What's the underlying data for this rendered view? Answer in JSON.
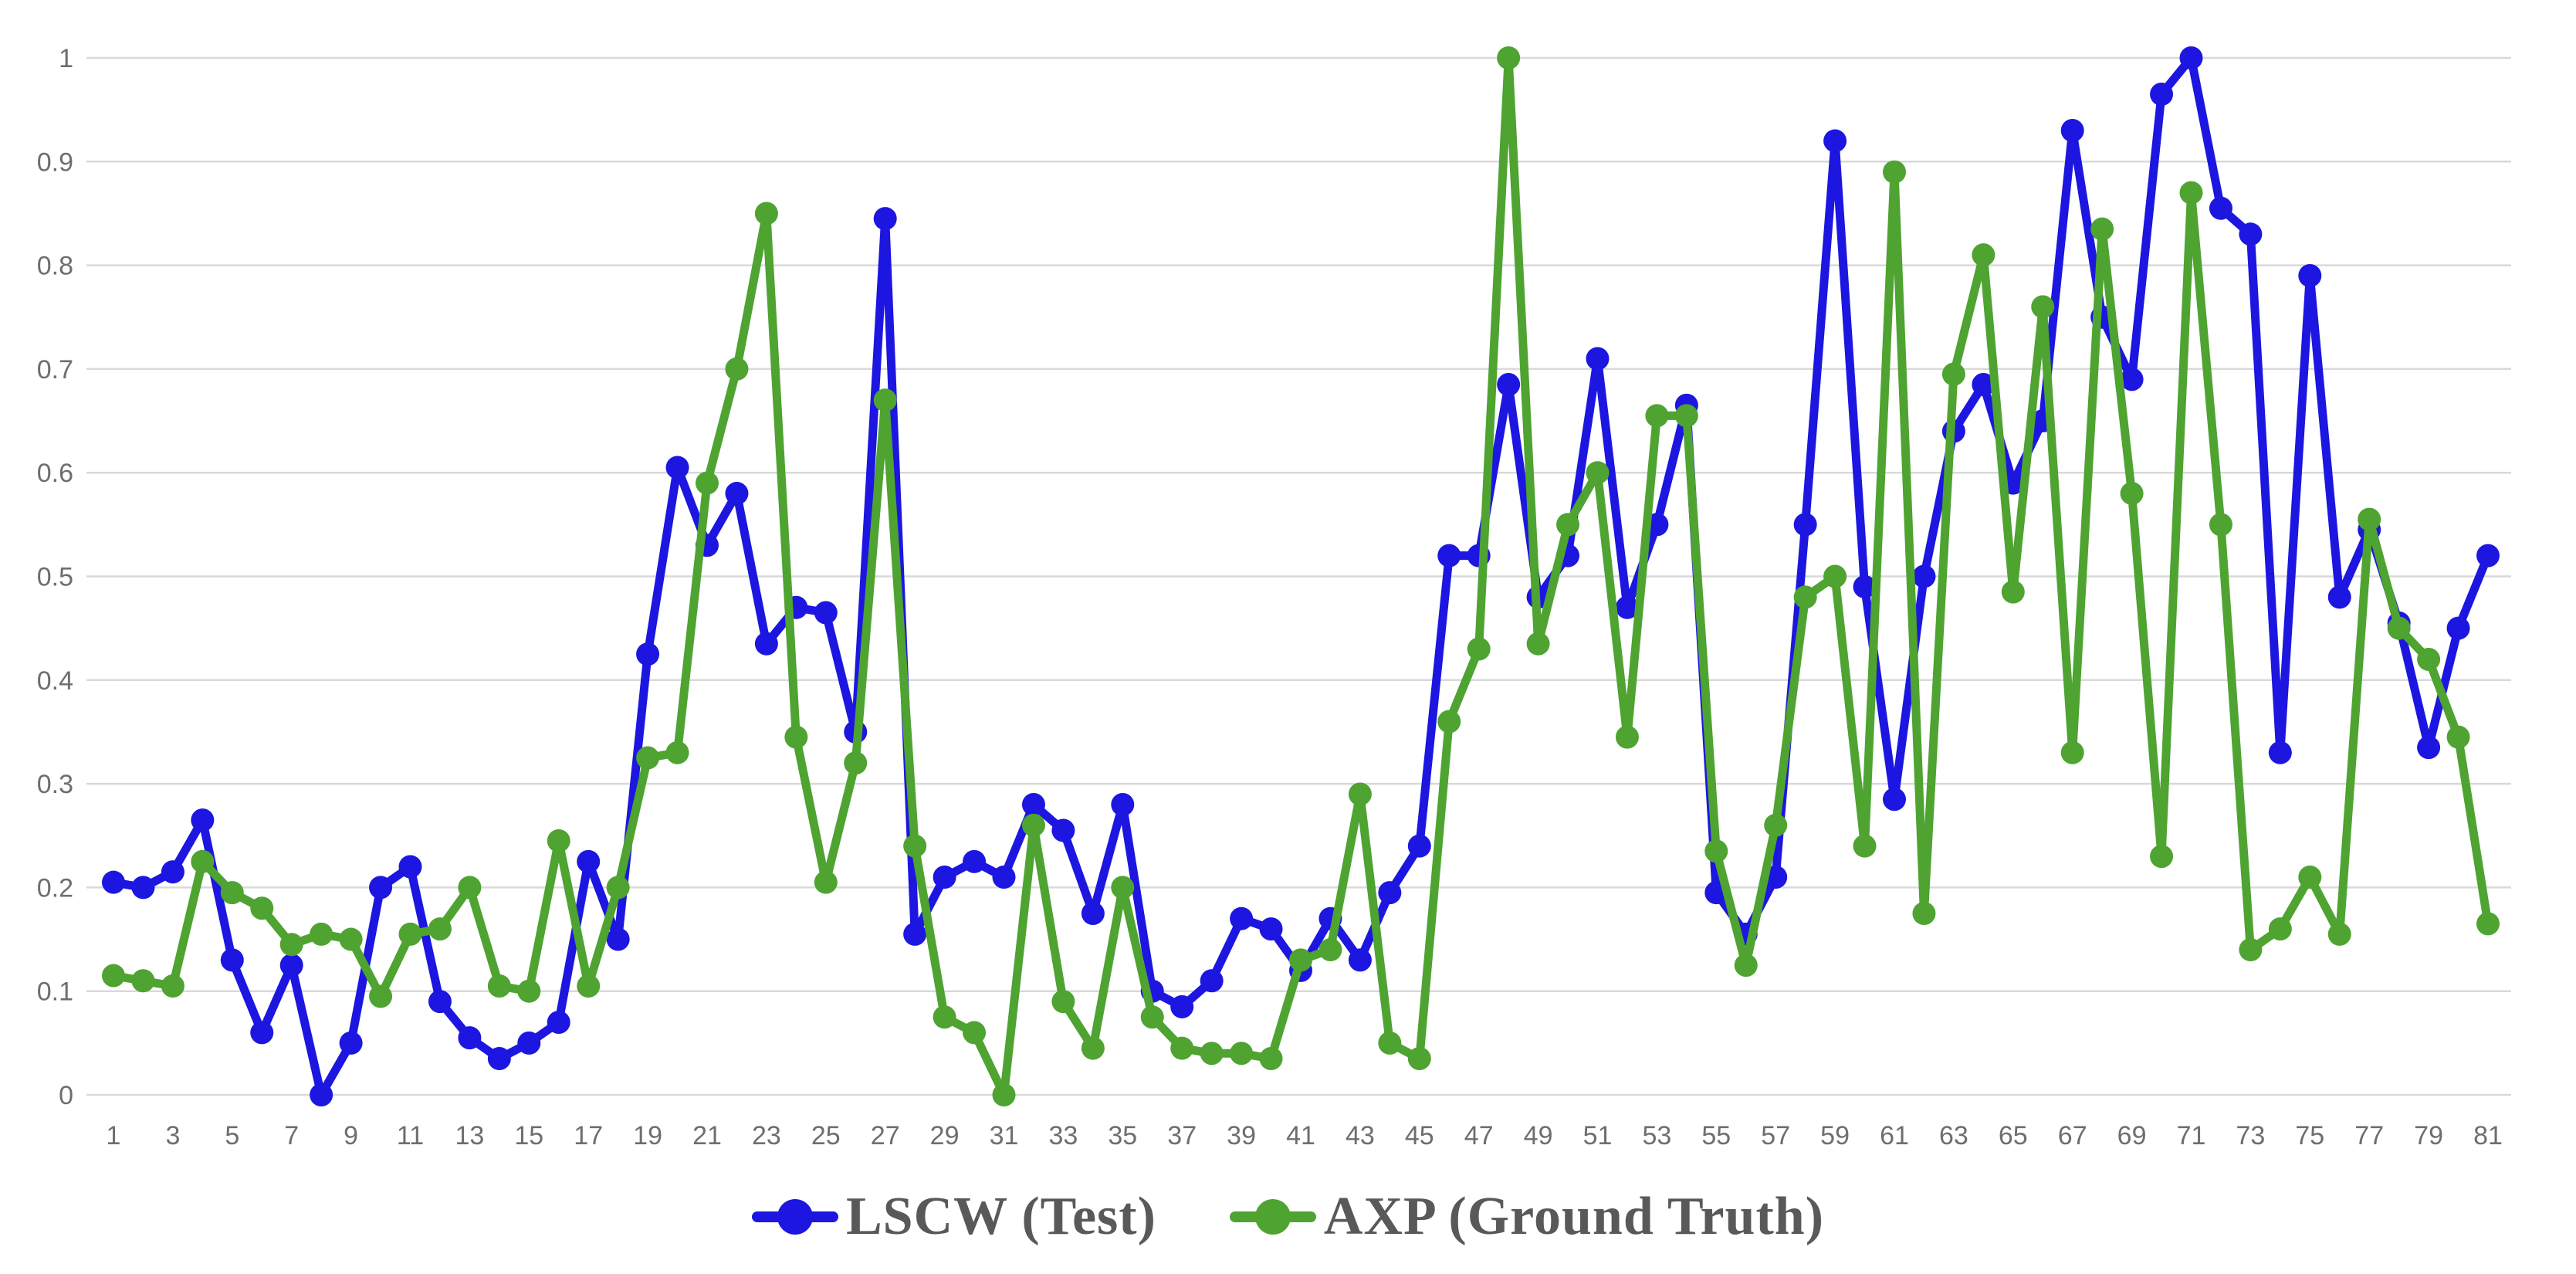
{
  "colors": {
    "background": "#ffffff",
    "grid": "#d9d9d9",
    "axis_text": "#6e6e6e",
    "legend_text": "#595959",
    "blue": "#1c16e0",
    "green": "#4ea331"
  },
  "chart_data": {
    "type": "line",
    "title": "",
    "xlabel": "",
    "ylabel": "",
    "grid": "horizontal",
    "legend_position": "bottom",
    "ylim": [
      0,
      1
    ],
    "y_ticks": [
      0,
      0.1,
      0.2,
      0.3,
      0.4,
      0.5,
      0.6,
      0.7,
      0.8,
      0.9,
      1
    ],
    "y_tick_labels": [
      "0",
      "0.1",
      "0.2",
      "0.3",
      "0.4",
      "0.5",
      "0.6",
      "0.7",
      "0.8",
      "0.9",
      "1"
    ],
    "x": [
      1,
      2,
      3,
      4,
      5,
      6,
      7,
      8,
      9,
      10,
      11,
      12,
      13,
      14,
      15,
      16,
      17,
      18,
      19,
      20,
      21,
      22,
      23,
      24,
      25,
      26,
      27,
      28,
      29,
      30,
      31,
      32,
      33,
      34,
      35,
      36,
      37,
      38,
      39,
      40,
      41,
      42,
      43,
      44,
      45,
      46,
      47,
      48,
      49,
      50,
      51,
      52,
      53,
      54,
      55,
      56,
      57,
      58,
      59,
      60,
      61,
      62,
      63,
      64,
      65,
      66,
      67,
      68,
      69,
      70,
      71,
      72,
      73,
      74,
      75,
      76,
      77,
      78,
      79,
      80,
      81
    ],
    "x_tick_labels": [
      "1",
      "3",
      "5",
      "7",
      "9",
      "11",
      "13",
      "15",
      "17",
      "19",
      "21",
      "23",
      "25",
      "27",
      "29",
      "31",
      "33",
      "35",
      "37",
      "39",
      "41",
      "43",
      "45",
      "47",
      "49",
      "51",
      "53",
      "55",
      "57",
      "59",
      "61",
      "63",
      "65",
      "67",
      "69",
      "71",
      "73",
      "75",
      "77",
      "79",
      "81"
    ],
    "series": [
      {
        "name": "LSCW (Test)",
        "color": "#1c16e0",
        "marker": "circle",
        "values": [
          0.205,
          0.2,
          0.215,
          0.265,
          0.13,
          0.06,
          0.125,
          0.0,
          0.05,
          0.2,
          0.22,
          0.09,
          0.055,
          0.035,
          0.05,
          0.07,
          0.225,
          0.15,
          0.425,
          0.605,
          0.53,
          0.58,
          0.435,
          0.47,
          0.465,
          0.35,
          0.845,
          0.155,
          0.21,
          0.225,
          0.21,
          0.28,
          0.255,
          0.175,
          0.28,
          0.1,
          0.085,
          0.11,
          0.17,
          0.16,
          0.12,
          0.17,
          0.13,
          0.195,
          0.24,
          0.52,
          0.52,
          0.685,
          0.48,
          0.52,
          0.71,
          0.47,
          0.55,
          0.665,
          0.195,
          0.155,
          0.21,
          0.55,
          0.92,
          0.49,
          0.285,
          0.5,
          0.64,
          0.685,
          0.59,
          0.65,
          0.93,
          0.75,
          0.69,
          0.965,
          1.0,
          0.855,
          0.83,
          0.33,
          0.79,
          0.48,
          0.545,
          0.455,
          0.335,
          0.45,
          0.52
        ]
      },
      {
        "name": "AXP (Ground Truth)",
        "color": "#4ea331",
        "marker": "circle",
        "values": [
          0.115,
          0.11,
          0.105,
          0.225,
          0.195,
          0.18,
          0.145,
          0.155,
          0.15,
          0.095,
          0.155,
          0.16,
          0.2,
          0.105,
          0.1,
          0.245,
          0.105,
          0.2,
          0.325,
          0.33,
          0.59,
          0.7,
          0.85,
          0.345,
          0.205,
          0.32,
          0.67,
          0.24,
          0.075,
          0.06,
          0.0,
          0.26,
          0.09,
          0.045,
          0.2,
          0.075,
          0.045,
          0.04,
          0.04,
          0.035,
          0.13,
          0.14,
          0.29,
          0.05,
          0.035,
          0.36,
          0.43,
          1.0,
          0.435,
          0.55,
          0.6,
          0.345,
          0.655,
          0.655,
          0.235,
          0.125,
          0.26,
          0.48,
          0.5,
          0.24,
          0.89,
          0.175,
          0.695,
          0.81,
          0.485,
          0.76,
          0.33,
          0.835,
          0.58,
          0.23,
          0.87,
          0.55,
          0.14,
          0.16,
          0.21,
          0.155,
          0.555,
          0.45,
          0.42,
          0.345,
          0.165
        ]
      }
    ]
  }
}
